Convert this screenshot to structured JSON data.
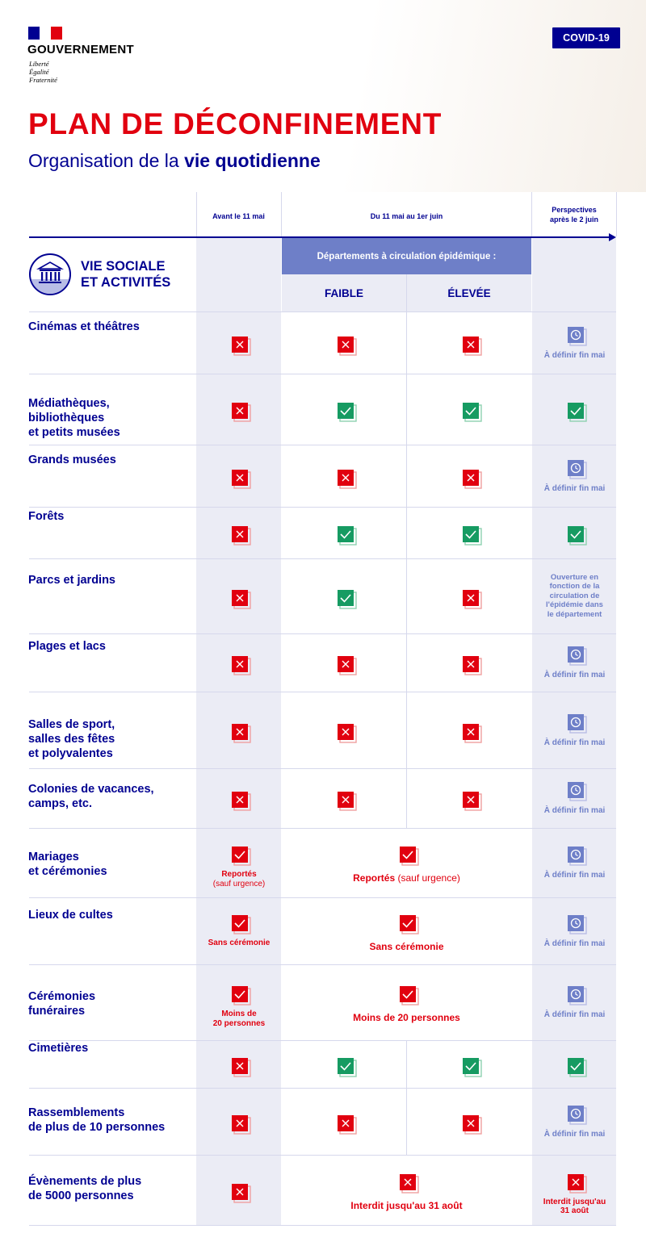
{
  "header": {
    "gov_name": "GOUVERNEMENT",
    "motto": [
      "Liberté",
      "Égalité",
      "Fraternité"
    ],
    "badge": "COVID-19",
    "title": "PLAN DE DÉCONFINEMENT",
    "subtitle_pre": "Organisation de la ",
    "subtitle_bold": "vie quotidienne"
  },
  "colors": {
    "blue": "#000091",
    "red": "#e1000f",
    "green": "#169b62",
    "light_blue": "#6e7fc8",
    "shade": "#ebecf5"
  },
  "columns": {
    "before": "Avant le 11 mai",
    "period": "Du 11 mai au 1er juin",
    "perspectives_1": "Perspectives",
    "perspectives_2": "après le 2 juin",
    "departments": "Départements à circulation épidémique :",
    "low": "FAIBLE",
    "high": "ÉLEVÉE"
  },
  "section": {
    "title_1": "VIE SOCIALE",
    "title_2": "ET ACTIVITÉS",
    "icon": "museum-icon"
  },
  "rows": [
    {
      "label": [
        "Cinémas et théâtres"
      ],
      "before": "no",
      "low": "no",
      "high": "no",
      "after": "clock",
      "after_note": "À définir fin mai"
    },
    {
      "label": [
        "Médiathèques,",
        "bibliothèques",
        "et petits musées"
      ],
      "before": "no",
      "low": "yes",
      "high": "yes",
      "after": "yes"
    },
    {
      "label": [
        "Grands musées"
      ],
      "before": "no",
      "low": "no",
      "high": "no",
      "after": "clock",
      "after_note": "À définir fin mai"
    },
    {
      "label": [
        "Forêts"
      ],
      "before": "no",
      "low": "yes",
      "high": "yes",
      "after": "yes"
    },
    {
      "label": [
        "Parcs et jardins"
      ],
      "before": "no",
      "low": "yes",
      "high": "no",
      "after": "text",
      "after_note": [
        "Ouverture en",
        "fonction de la",
        "circulation de",
        "l'épidémie dans",
        "le département"
      ]
    },
    {
      "label": [
        "Plages et lacs"
      ],
      "before": "no",
      "low": "no",
      "high": "no",
      "after": "clock",
      "after_note": "À définir fin mai"
    },
    {
      "label": [
        "Salles de sport,",
        "salles des fêtes",
        "et polyvalentes"
      ],
      "before": "no",
      "low": "no",
      "high": "no",
      "after": "clock",
      "after_note": "À définir fin mai"
    },
    {
      "label": [
        "Colonies de vacances,",
        "camps, etc."
      ],
      "before": "no",
      "low": "no",
      "high": "no",
      "after": "clock",
      "after_note": "À définir fin mai"
    },
    {
      "label": [
        "Mariages",
        "et cérémonies"
      ],
      "before": "partial",
      "before_note": [
        "Reportés",
        "(sauf urgence)"
      ],
      "period": "partial",
      "period_note_bold": "Reportés ",
      "period_note_light": "(sauf urgence)",
      "after": "clock",
      "after_note": "À définir fin mai"
    },
    {
      "label": [
        "Lieux de cultes"
      ],
      "before": "partial",
      "before_note": [
        "Sans cérémonie"
      ],
      "period": "partial",
      "period_note_bold": "Sans cérémonie",
      "after": "clock",
      "after_note": "À définir fin mai"
    },
    {
      "label": [
        "Cérémonies",
        "funéraires"
      ],
      "before": "partial",
      "before_note": [
        "Moins de",
        "20 personnes"
      ],
      "period": "partial",
      "period_note_bold": "Moins de 20 personnes",
      "after": "clock",
      "after_note": "À définir fin mai"
    },
    {
      "label": [
        "Cimetières"
      ],
      "before": "no",
      "low": "yes",
      "high": "yes",
      "after": "yes"
    },
    {
      "label": [
        "Rassemblements",
        "de plus de 10 personnes"
      ],
      "before": "no",
      "low": "no",
      "high": "no",
      "after": "clock",
      "after_note": "À définir fin mai"
    },
    {
      "label": [
        "Évènements de plus",
        "de 5000 personnes"
      ],
      "before": "no",
      "period": "no",
      "period_note_bold": "Interdit jusqu'au 31 août",
      "after": "no",
      "after_note": [
        "Interdit jusqu'au",
        "31 août"
      ]
    }
  ]
}
